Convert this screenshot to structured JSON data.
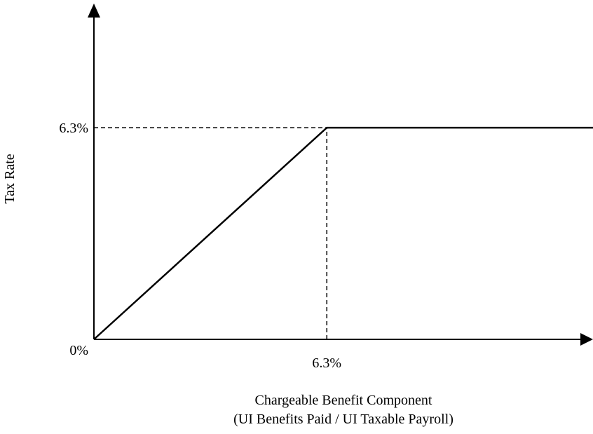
{
  "chart_data": {
    "type": "line",
    "title": "",
    "xlabel": "Chargeable Benefit Component",
    "xlabel_sub": "(UI Benefits Paid / UI Taxable Payroll)",
    "ylabel": "Tax Rate",
    "x_tick_labels": [
      "6.3%"
    ],
    "y_tick_labels": [
      "0%",
      "6.3%"
    ],
    "series": [
      {
        "x": [
          0,
          6.3,
          13.5
        ],
        "y": [
          0,
          6.3,
          6.3
        ]
      }
    ],
    "reference_lines": [
      {
        "orientation": "horizontal",
        "value": 6.3,
        "from_x": 0,
        "to_x": 6.3,
        "style": "dashed"
      },
      {
        "orientation": "vertical",
        "value": 6.3,
        "from_y": 0,
        "to_y": 6.3,
        "style": "dashed"
      }
    ],
    "xlim": [
      0,
      13.5
    ],
    "ylim": [
      0,
      10.1
    ],
    "grid": false,
    "legend": "none",
    "colors": {
      "line": "#000000",
      "axis": "#000000"
    }
  }
}
